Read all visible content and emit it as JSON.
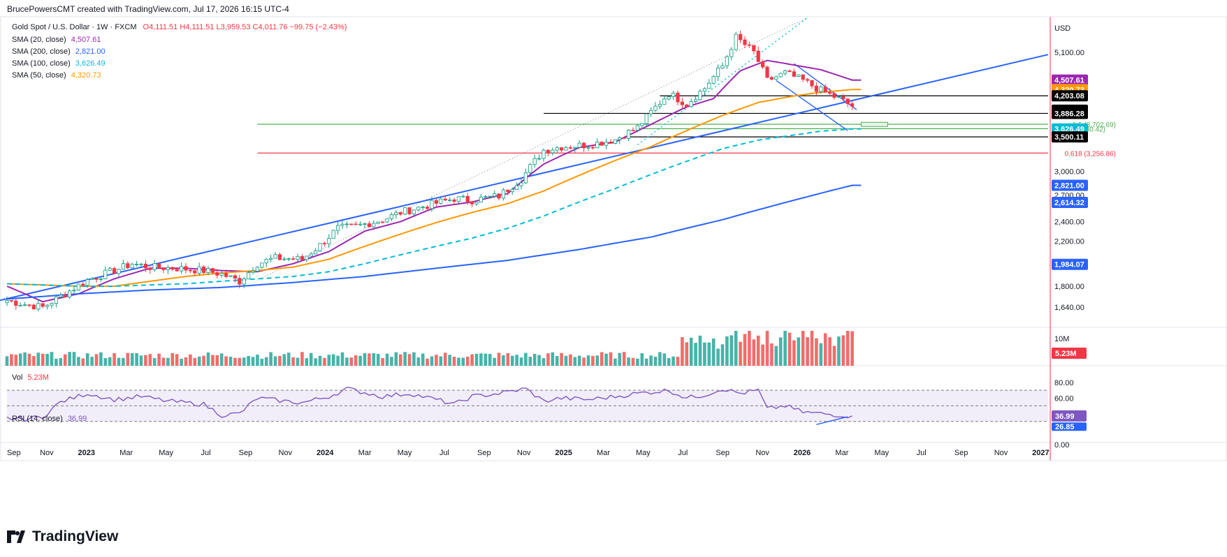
{
  "header": {
    "credit": "BrucePowersCMT created with TradingView.com, Jul 17, 2026 16:15 UTC-4"
  },
  "legend": {
    "title": "Gold Spot / U.S. Dollar · 1W · FXCM",
    "ohlc": "O4,111.51  H4,111.51  L3,959.53  C4,011.76  −99.75 (−2.43%)",
    "sma20": {
      "label": "SMA (20, close)",
      "value": "4,507.61",
      "color": "#9c27b0"
    },
    "sma200": {
      "label": "SMA (200, close)",
      "value": "2,821.00",
      "color": "#2962ff"
    },
    "sma100": {
      "label": "SMA (100, close)",
      "value": "3,626.49",
      "color": "#00bcd4"
    },
    "sma50": {
      "label": "SMA (50, close)",
      "value": "4,320.73",
      "color": "#ff9800"
    }
  },
  "volume_pane": {
    "label": "Vol",
    "value": "5.23M",
    "axis_label": "10M"
  },
  "rsi_pane": {
    "label": "RSI (14, close)",
    "value": "36.99",
    "second_value": "26.85"
  },
  "brand": "TradingView",
  "chart_data": {
    "type": "candlestick",
    "symbol": "Gold Spot / U.S. Dollar",
    "interval": "1W",
    "currency": "USD",
    "scale": "log",
    "price_ticks": [
      5100,
      3000,
      2700,
      2400,
      2200,
      1800,
      1640
    ],
    "price_tick_labels": [
      "5,100.00",
      "3,000.00",
      "2,700.00",
      "2,400.00",
      "2,200.00",
      "1,800.00",
      "1,640.00"
    ],
    "x_labels": [
      "Sep",
      "Nov",
      "2023",
      "Mar",
      "May",
      "Jul",
      "Sep",
      "Nov",
      "2024",
      "Mar",
      "May",
      "Jul",
      "Sep",
      "Nov",
      "2025",
      "Mar",
      "May",
      "Jul",
      "Sep",
      "Nov",
      "2026",
      "Mar",
      "May",
      "Jul",
      "Sep",
      "Nov",
      "2027"
    ],
    "price_key": [
      [
        0,
        1690
      ],
      [
        4,
        1660
      ],
      [
        8,
        1640
      ],
      [
        12,
        1720
      ],
      [
        18,
        1850
      ],
      [
        24,
        1930
      ],
      [
        28,
        1990
      ],
      [
        32,
        1960
      ],
      [
        38,
        1950
      ],
      [
        44,
        1930
      ],
      [
        48,
        1900
      ],
      [
        52,
        1840
      ],
      [
        56,
        1990
      ],
      [
        60,
        2040
      ],
      [
        66,
        2030
      ],
      [
        70,
        2160
      ],
      [
        74,
        2330
      ],
      [
        78,
        2350
      ],
      [
        84,
        2420
      ],
      [
        88,
        2500
      ],
      [
        94,
        2580
      ],
      [
        100,
        2660
      ],
      [
        104,
        2640
      ],
      [
        110,
        2690
      ],
      [
        115,
        2900
      ],
      [
        120,
        3300
      ],
      [
        124,
        3350
      ],
      [
        130,
        3380
      ],
      [
        136,
        3460
      ],
      [
        141,
        3650
      ],
      [
        148,
        4250
      ],
      [
        152,
        4050
      ],
      [
        156,
        4350
      ],
      [
        160,
        4800
      ],
      [
        163,
        5450
      ],
      [
        167,
        5100
      ],
      [
        170,
        4500
      ],
      [
        174,
        4650
      ],
      [
        178,
        4500
      ],
      [
        182,
        4300
      ],
      [
        186,
        4150
      ],
      [
        189,
        4011.76
      ]
    ],
    "series": [
      {
        "name": "SMA (20, close)",
        "last": 4507.61,
        "color": "#9c27b0",
        "points": [
          [
            0,
            1800
          ],
          [
            8,
            1680
          ],
          [
            16,
            1740
          ],
          [
            24,
            1860
          ],
          [
            32,
            1950
          ],
          [
            40,
            1950
          ],
          [
            48,
            1930
          ],
          [
            56,
            1920
          ],
          [
            64,
            1990
          ],
          [
            72,
            2100
          ],
          [
            80,
            2300
          ],
          [
            88,
            2400
          ],
          [
            96,
            2560
          ],
          [
            104,
            2620
          ],
          [
            112,
            2720
          ],
          [
            120,
            3100
          ],
          [
            128,
            3340
          ],
          [
            136,
            3420
          ],
          [
            144,
            3700
          ],
          [
            152,
            4000
          ],
          [
            158,
            4150
          ],
          [
            164,
            4700
          ],
          [
            170,
            4920
          ],
          [
            176,
            4820
          ],
          [
            182,
            4720
          ],
          [
            189,
            4507.61
          ]
        ]
      },
      {
        "name": "SMA (50, close)",
        "last": 4320.73,
        "color": "#ff9800",
        "points": [
          [
            0,
            1820
          ],
          [
            8,
            1810
          ],
          [
            16,
            1800
          ],
          [
            24,
            1800
          ],
          [
            32,
            1840
          ],
          [
            40,
            1880
          ],
          [
            48,
            1910
          ],
          [
            56,
            1930
          ],
          [
            64,
            1960
          ],
          [
            72,
            2030
          ],
          [
            80,
            2150
          ],
          [
            88,
            2270
          ],
          [
            96,
            2390
          ],
          [
            104,
            2500
          ],
          [
            112,
            2600
          ],
          [
            120,
            2750
          ],
          [
            128,
            2950
          ],
          [
            136,
            3150
          ],
          [
            144,
            3350
          ],
          [
            152,
            3600
          ],
          [
            160,
            3850
          ],
          [
            168,
            4080
          ],
          [
            176,
            4200
          ],
          [
            182,
            4270
          ],
          [
            189,
            4320.73
          ]
        ]
      },
      {
        "name": "SMA (100, close)",
        "last": 3626.49,
        "color": "#00bcd4",
        "dashed": true,
        "points": [
          [
            0,
            1820
          ],
          [
            8,
            1810
          ],
          [
            16,
            1800
          ],
          [
            24,
            1800
          ],
          [
            32,
            1810
          ],
          [
            40,
            1820
          ],
          [
            48,
            1840
          ],
          [
            56,
            1860
          ],
          [
            64,
            1880
          ],
          [
            72,
            1920
          ],
          [
            80,
            1990
          ],
          [
            88,
            2070
          ],
          [
            96,
            2150
          ],
          [
            104,
            2230
          ],
          [
            112,
            2330
          ],
          [
            120,
            2460
          ],
          [
            128,
            2620
          ],
          [
            136,
            2780
          ],
          [
            144,
            2960
          ],
          [
            152,
            3140
          ],
          [
            160,
            3320
          ],
          [
            168,
            3450
          ],
          [
            176,
            3530
          ],
          [
            182,
            3590
          ],
          [
            189,
            3626.49
          ]
        ]
      },
      {
        "name": "SMA (200, close)",
        "last": 2821.0,
        "color": "#2962ff",
        "points": [
          [
            0,
            1700
          ],
          [
            16,
            1740
          ],
          [
            32,
            1770
          ],
          [
            48,
            1790
          ],
          [
            64,
            1830
          ],
          [
            80,
            1880
          ],
          [
            96,
            1950
          ],
          [
            112,
            2020
          ],
          [
            128,
            2120
          ],
          [
            144,
            2240
          ],
          [
            160,
            2420
          ],
          [
            176,
            2640
          ],
          [
            189,
            2821.0
          ]
        ]
      }
    ],
    "markers": [
      {
        "label": "SMA 20",
        "value": 4507.61,
        "color": "#9c27b0"
      },
      {
        "label": "SMA 50",
        "value": 4320.73,
        "color": "#ff9800"
      },
      {
        "label": "level",
        "value": 4203.08,
        "color": "#000000"
      },
      {
        "label": "level",
        "value": 3941.75,
        "color": "#000000"
      },
      {
        "label": "level",
        "value": 3886.28,
        "color": "#000000"
      },
      {
        "label": "SMA 100",
        "value": 3626.49,
        "color": "#00bcd4"
      },
      {
        "label": "level",
        "value": 3500.11,
        "color": "#000000"
      },
      {
        "label": "SMA 200",
        "value": 2821.0,
        "color": "#2962ff"
      },
      {
        "label": "trendline",
        "value": 2614.32,
        "color": "#2962ff"
      },
      {
        "label": "trendline",
        "value": 1984.07,
        "color": "#2962ff"
      }
    ],
    "marker_labels": [
      "4,507.61",
      "4,320.73",
      "4,203.08",
      "3,941.75",
      "3,886.28",
      "3,626.49",
      "3,500.11",
      "2,821.00",
      "2,614.32",
      "1,984.07"
    ],
    "fibonacci": [
      {
        "text": "0.5 (3,702.69)",
        "value": 3702.69,
        "color": "#4caf50"
      },
      {
        "text": "0.786 (3,630.42)",
        "value": 3630.42,
        "color": "#4caf50"
      },
      {
        "text": "0.618 (3,256.86)",
        "value": 3256.86,
        "color": "#f23645"
      }
    ],
    "volume": {
      "ticks": [
        "10M"
      ],
      "last": "5.23M"
    },
    "rsi": {
      "ticks": [
        "80.00",
        "60.00",
        "0.00"
      ],
      "overbought": 70,
      "oversold": 30,
      "last": 36.99,
      "second": 26.85
    }
  }
}
